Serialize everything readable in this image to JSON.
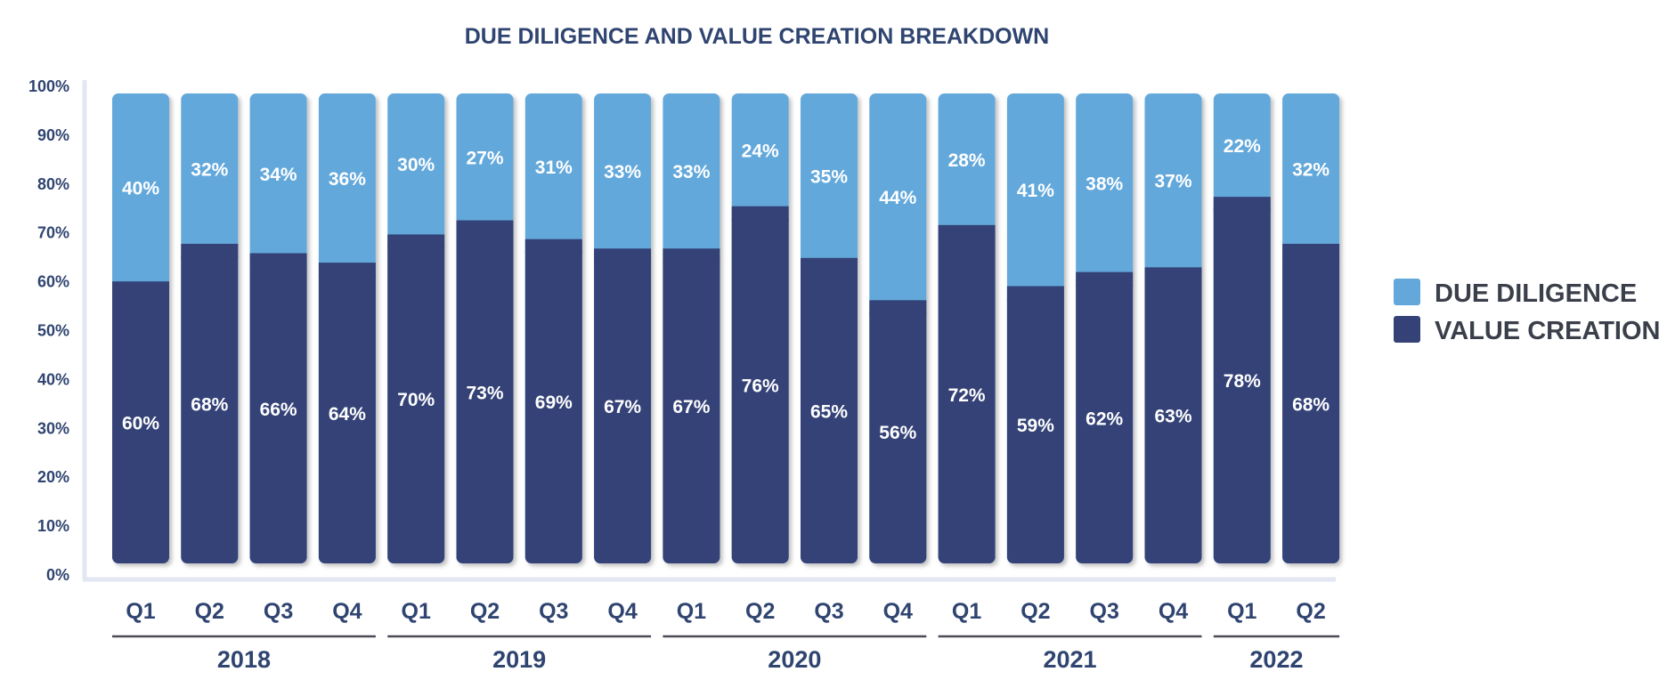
{
  "chart_data": {
    "type": "bar",
    "stacked": true,
    "title": "DUE DILIGENCE AND VALUE CREATION BREAKDOWN",
    "categories": [
      "Q1",
      "Q2",
      "Q3",
      "Q4",
      "Q1",
      "Q2",
      "Q3",
      "Q4",
      "Q1",
      "Q2",
      "Q3",
      "Q4",
      "Q1",
      "Q2",
      "Q3",
      "Q4",
      "Q1",
      "Q2"
    ],
    "groups": [
      {
        "label": "2018",
        "count": 4
      },
      {
        "label": "2019",
        "count": 4
      },
      {
        "label": "2020",
        "count": 4
      },
      {
        "label": "2021",
        "count": 4
      },
      {
        "label": "2022",
        "count": 2
      }
    ],
    "series": [
      {
        "name": "VALUE CREATION",
        "color": "#344277",
        "values": [
          60,
          68,
          66,
          64,
          70,
          73,
          69,
          67,
          67,
          76,
          65,
          56,
          72,
          59,
          62,
          63,
          78,
          68
        ],
        "labels": [
          "60%",
          "68%",
          "66%",
          "64%",
          "70%",
          "73%",
          "69%",
          "67%",
          "67%",
          "76%",
          "65%",
          "56%",
          "72%",
          "59%",
          "62%",
          "63%",
          "78%",
          "68%"
        ]
      },
      {
        "name": "DUE DILIGENCE",
        "color": "#64a8db",
        "values": [
          40,
          32,
          34,
          36,
          30,
          27,
          31,
          33,
          33,
          24,
          35,
          44,
          28,
          41,
          38,
          37,
          22,
          32
        ],
        "labels": [
          "40%",
          "32%",
          "34%",
          "36%",
          "30%",
          "27%",
          "31%",
          "33%",
          "33%",
          "24%",
          "35%",
          "44%",
          "28%",
          "41%",
          "38%",
          "37%",
          "22%",
          "32%"
        ]
      }
    ],
    "yticks": [
      "0%",
      "10%",
      "20%",
      "30%",
      "40%",
      "50%",
      "60%",
      "70%",
      "80%",
      "90%",
      "100%"
    ],
    "ylim": [
      0,
      100
    ],
    "legend": {
      "placement": "right",
      "items": [
        {
          "label": "DUE DILIGENCE",
          "color": "#64a8db"
        },
        {
          "label": "VALUE CREATION",
          "color": "#344277"
        }
      ]
    },
    "grid": false,
    "axis_color": "#e3e7f2",
    "group_line_color": "#4a4d55"
  }
}
